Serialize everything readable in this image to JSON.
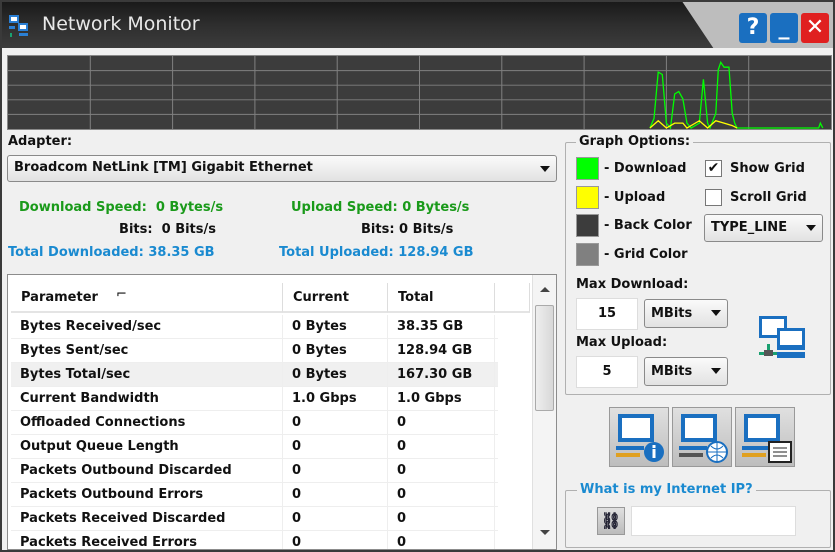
{
  "window": {
    "title": "Network Monitor",
    "help_label": "?",
    "minimize_label": "_",
    "close_label": "✕"
  },
  "graph": {
    "background": "#3c3c3c",
    "grid_color": "#808080",
    "download_color": "#00ff00",
    "upload_color": "#ffff00",
    "grid_columns": 10,
    "grid_rows": 5,
    "max_value": 15,
    "sample_count": 100,
    "download_samples": [
      [
        78,
        0
      ],
      [
        78.5,
        2
      ],
      [
        79,
        11.5
      ],
      [
        79.5,
        11
      ],
      [
        80,
        1
      ],
      [
        80.5,
        0
      ],
      [
        81,
        7
      ],
      [
        81.5,
        7.5
      ],
      [
        82,
        6
      ],
      [
        82.5,
        1
      ],
      [
        83,
        0
      ],
      [
        84,
        1
      ],
      [
        84.5,
        10
      ],
      [
        85,
        1
      ],
      [
        85.3,
        0
      ],
      [
        86,
        3
      ],
      [
        86.3,
        12
      ],
      [
        86.6,
        13.5
      ],
      [
        87,
        12.5
      ],
      [
        87.6,
        12.5
      ],
      [
        88,
        3
      ],
      [
        88.3,
        1
      ],
      [
        88.6,
        0
      ],
      [
        98.5,
        0
      ],
      [
        98.7,
        1
      ],
      [
        99,
        0
      ]
    ],
    "upload_samples": [
      [
        78,
        0
      ],
      [
        79,
        1.5
      ],
      [
        80,
        0
      ],
      [
        81,
        1
      ],
      [
        82,
        1
      ],
      [
        82.5,
        0
      ],
      [
        84,
        1.5
      ],
      [
        85,
        0
      ],
      [
        86,
        1.5
      ],
      [
        87,
        1
      ],
      [
        88,
        0.5
      ],
      [
        88.6,
        0
      ]
    ]
  },
  "adapter": {
    "label": "Adapter:",
    "selected": "Broadcom NetLink [TM] Gigabit Ethernet"
  },
  "stats": {
    "download_speed_label": "Download Speed:",
    "download_speed": "0 Bytes/s",
    "download_bits_label": "Bits:",
    "download_bits": "0 Bits/s",
    "total_downloaded_label": "Total Downloaded:",
    "total_downloaded": "38.35 GB",
    "upload_speed_label": "Upload Speed:",
    "upload_speed": "0 Bytes/s",
    "upload_bits_label": "Bits:",
    "upload_bits": "0 Bits/s",
    "total_uploaded_label": "Total Uploaded:",
    "total_uploaded": "128.94 GB"
  },
  "table": {
    "columns": [
      "Parameter",
      "Current",
      "Total"
    ],
    "rows": [
      [
        "Bytes Received/sec",
        "0 Bytes",
        "38.35 GB"
      ],
      [
        "Bytes Sent/sec",
        "0 Bytes",
        "128.94 GB"
      ],
      [
        "Bytes Total/sec",
        "0 Bytes",
        "167.30 GB"
      ],
      [
        "Current Bandwidth",
        "1.0 Gbps",
        "1.0 Gbps"
      ],
      [
        "Offloaded Connections",
        "0",
        "0"
      ],
      [
        "Output Queue Length",
        "0",
        "0"
      ],
      [
        "Packets Outbound Discarded",
        "0",
        "0"
      ],
      [
        "Packets Outbound Errors",
        "0",
        "0"
      ],
      [
        "Packets Received Discarded",
        "0",
        "0"
      ],
      [
        "Packets Received Errors",
        "0",
        "0"
      ]
    ],
    "selected_row": 2
  },
  "graph_options": {
    "title": "Graph Options:",
    "download_label": "- Download",
    "upload_label": "- Upload",
    "back_color_label": "- Back Color",
    "grid_color_label": "- Grid Color",
    "show_grid_label": "Show Grid",
    "show_grid": true,
    "scroll_grid_label": "Scroll Grid",
    "scroll_grid": false,
    "graph_type": "TYPE_LINE",
    "max_download_label": "Max Download:",
    "max_download": "15",
    "max_download_unit": "MBits",
    "max_upload_label": "Max Upload:",
    "max_upload": "5",
    "max_upload_unit": "MBits"
  },
  "ip": {
    "title": "What is my Internet IP?",
    "value": ""
  }
}
